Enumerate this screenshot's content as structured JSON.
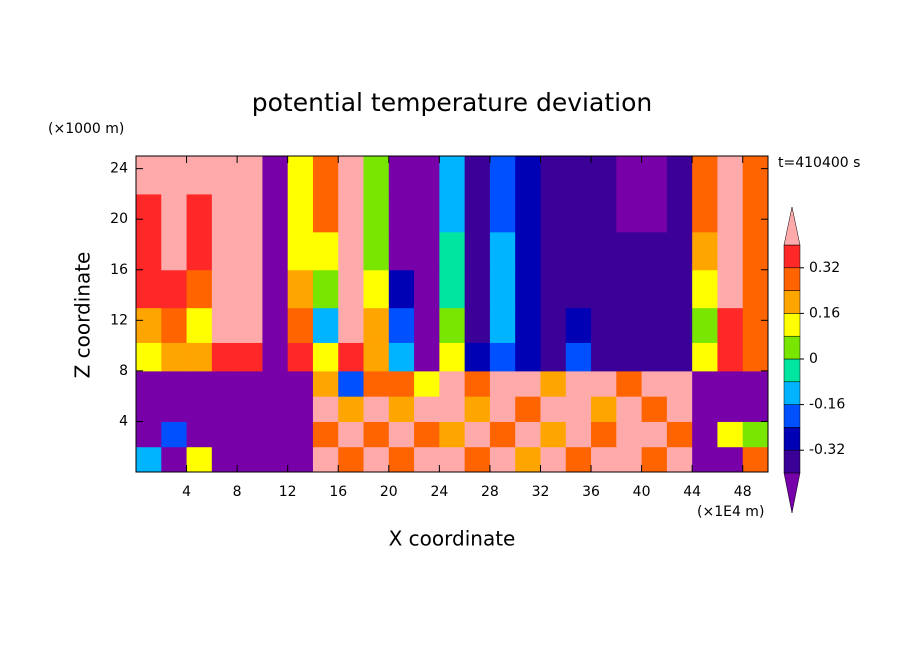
{
  "chart_data": {
    "type": "contour",
    "title": "potential temperature deviation",
    "xlabel": "X coordinate",
    "ylabel": "Z coordinate",
    "x_unit_label": "(×1E4 m)",
    "y_unit_label": "(×1000 m)",
    "time_label": "t=410400 s",
    "xlim": [
      0,
      50
    ],
    "ylim": [
      0,
      25
    ],
    "xticks": [
      4,
      8,
      12,
      16,
      20,
      24,
      28,
      32,
      36,
      40,
      44,
      48
    ],
    "yticks": [
      4,
      8,
      12,
      16,
      20,
      24
    ],
    "x": [
      1,
      3,
      5,
      7,
      9,
      11,
      13,
      15,
      17,
      19,
      21,
      23,
      25,
      27,
      29,
      31,
      33,
      35,
      37,
      39,
      41,
      43,
      45,
      47,
      49
    ],
    "y": [
      1,
      3,
      5,
      7,
      9,
      11.5,
      14.5,
      17.5,
      20.5,
      23.5
    ],
    "z": [
      [
        -0.1,
        -0.45,
        0.1,
        -0.45,
        -0.45,
        -0.45,
        -0.45,
        0.45,
        0.3,
        0.45,
        0.3,
        0.45,
        0.45,
        0.3,
        0.45,
        0.2,
        0.45,
        0.3,
        0.45,
        0.45,
        0.3,
        0.45,
        -0.45,
        -0.45,
        0.3
      ],
      [
        -0.45,
        -0.2,
        -0.45,
        -0.45,
        -0.45,
        -0.45,
        -0.45,
        0.3,
        0.45,
        0.3,
        0.45,
        0.3,
        0.2,
        0.45,
        0.3,
        0.45,
        0.2,
        0.45,
        0.3,
        0.45,
        0.45,
        0.3,
        -0.45,
        0.1,
        0.0
      ],
      [
        -0.45,
        -0.45,
        -0.45,
        -0.45,
        -0.45,
        -0.45,
        -0.45,
        0.45,
        0.2,
        0.45,
        0.2,
        0.45,
        0.45,
        0.2,
        0.45,
        0.3,
        0.45,
        0.45,
        0.2,
        0.45,
        0.3,
        0.45,
        -0.45,
        -0.45,
        -0.45
      ],
      [
        -0.45,
        -0.45,
        -0.45,
        -0.45,
        -0.45,
        -0.45,
        -0.45,
        0.2,
        -0.2,
        0.3,
        0.3,
        0.1,
        0.45,
        0.3,
        0.45,
        0.45,
        0.2,
        0.45,
        0.45,
        0.3,
        0.45,
        0.45,
        -0.45,
        -0.45,
        -0.45
      ],
      [
        0.1,
        0.2,
        0.2,
        0.35,
        0.35,
        -0.45,
        0.35,
        0.1,
        0.35,
        0.2,
        -0.1,
        -0.45,
        0.1,
        -0.3,
        -0.2,
        -0.3,
        -0.35,
        -0.2,
        -0.35,
        -0.35,
        -0.35,
        -0.35,
        0.1,
        0.35,
        0.3
      ],
      [
        0.2,
        0.3,
        0.15,
        0.45,
        0.45,
        -0.45,
        0.3,
        -0.1,
        0.45,
        0.2,
        -0.2,
        -0.45,
        0.0,
        -0.4,
        -0.15,
        -0.3,
        -0.35,
        -0.3,
        -0.35,
        -0.35,
        -0.35,
        -0.35,
        0.0,
        0.35,
        0.3
      ],
      [
        0.35,
        0.35,
        0.25,
        0.45,
        0.45,
        -0.45,
        0.2,
        0.0,
        0.45,
        0.1,
        -0.3,
        -0.45,
        -0.05,
        -0.4,
        -0.1,
        -0.3,
        -0.35,
        -0.35,
        -0.35,
        -0.35,
        -0.35,
        -0.35,
        0.1,
        0.4,
        0.3
      ],
      [
        0.35,
        0.45,
        0.35,
        0.45,
        0.45,
        -0.45,
        0.15,
        0.1,
        0.45,
        0.05,
        -0.45,
        -0.45,
        -0.05,
        -0.4,
        -0.15,
        -0.3,
        -0.35,
        -0.35,
        -0.35,
        -0.35,
        -0.35,
        -0.35,
        0.2,
        0.45,
        0.3
      ],
      [
        0.35,
        0.45,
        0.35,
        0.45,
        0.45,
        -0.45,
        0.1,
        0.3,
        0.45,
        0.0,
        -0.45,
        -0.45,
        -0.1,
        -0.4,
        -0.2,
        -0.3,
        -0.35,
        -0.35,
        -0.35,
        -0.45,
        -0.45,
        -0.35,
        0.3,
        0.45,
        0.3
      ],
      [
        0.45,
        0.45,
        0.45,
        0.45,
        0.45,
        -0.45,
        0.1,
        0.3,
        0.45,
        0.0,
        -0.45,
        -0.45,
        -0.1,
        -0.4,
        -0.2,
        -0.3,
        -0.35,
        -0.35,
        -0.35,
        -0.45,
        -0.45,
        -0.35,
        0.3,
        0.45,
        0.3
      ]
    ],
    "levels": [
      -0.4,
      -0.32,
      -0.24,
      -0.16,
      -0.08,
      0,
      0.08,
      0.16,
      0.24,
      0.32,
      0.4
    ],
    "colors": [
      "#7800a8",
      "#3a0098",
      "#0000b4",
      "#0050ff",
      "#00b4ff",
      "#00e6a0",
      "#78e600",
      "#ffff00",
      "#ffa500",
      "#ff6400",
      "#ff2828",
      "#ffaaaa"
    ],
    "cbar_ticks": [
      0.32,
      0.16,
      0,
      -0.16,
      -0.32
    ]
  }
}
